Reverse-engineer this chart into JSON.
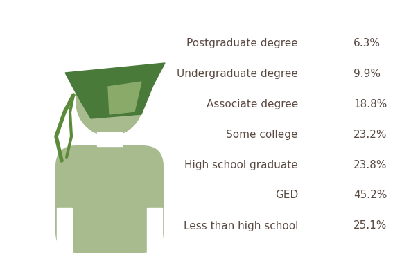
{
  "labels": [
    "Postgraduate degree",
    "Undergraduate degree",
    "Associate degree",
    "Some college",
    "High school graduate",
    "GED",
    "Less than high school"
  ],
  "values": [
    "6.3%",
    "9.9%",
    "18.8%",
    "23.2%",
    "23.8%",
    "45.2%",
    "25.1%"
  ],
  "text_color": "#5a4a42",
  "label_fontsize": 11,
  "value_fontsize": 11,
  "body_color": "#a8bb8e",
  "cap_dark_color": "#4a7a3a",
  "cap_light_color": "#8aaa6a",
  "tassel_color": "#5a8a3a",
  "background_color": "#ffffff"
}
